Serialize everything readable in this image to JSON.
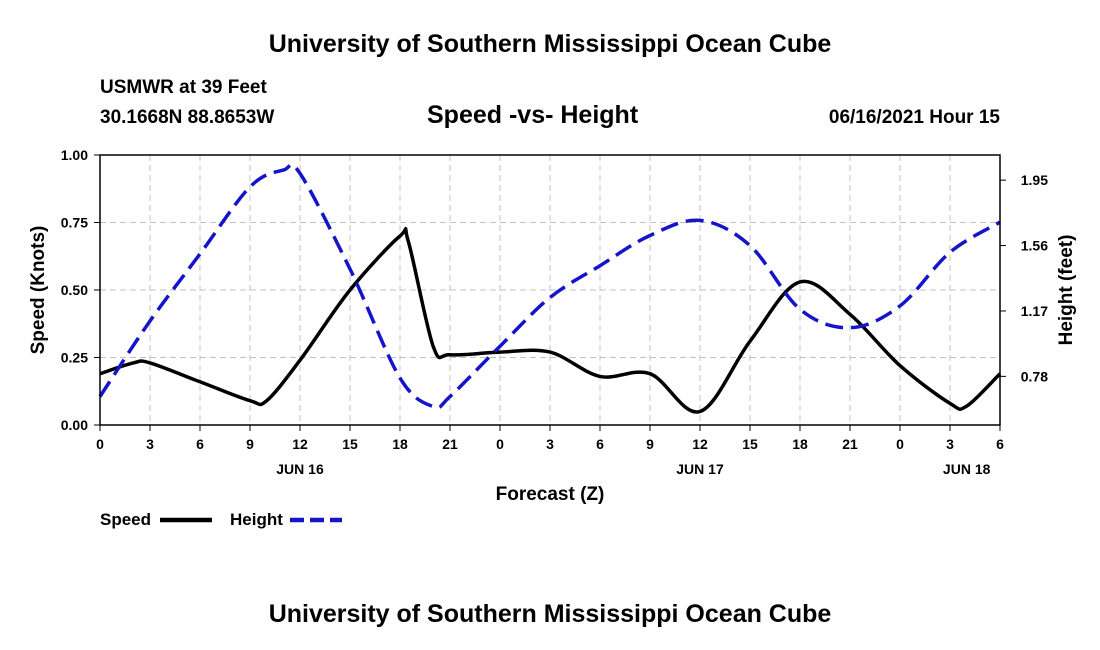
{
  "header": {
    "title": "University of Southern Mississippi Ocean Cube",
    "station": "USMWR at 39 Feet",
    "coords": "30.1668N  88.8653W",
    "chart_title": "Speed -vs- Height",
    "datetime": "06/16/2021 Hour 15"
  },
  "footer": {
    "title": "University of Southern Mississippi Ocean Cube"
  },
  "colors": {
    "speed": "#000000",
    "height": "#1414c8",
    "grid": "#c0c0c0"
  },
  "chart_data": {
    "type": "line",
    "title": "Speed -vs- Height",
    "xlabel": "Forecast (Z)",
    "ylabel": "Speed (Knots)",
    "y2label": "Height (feet)",
    "xlim": [
      0,
      54
    ],
    "ylim": [
      0,
      1
    ],
    "y2lim": [
      0.49,
      2.1
    ],
    "grid": true,
    "x_ticks": [
      0,
      3,
      6,
      9,
      12,
      15,
      18,
      21,
      24,
      27,
      30,
      33,
      36,
      39,
      42,
      45,
      48,
      51,
      54
    ],
    "x_tick_labels": [
      "0",
      "3",
      "6",
      "9",
      "12",
      "15",
      "18",
      "21",
      "0",
      "3",
      "6",
      "9",
      "12",
      "15",
      "18",
      "21",
      "0",
      "3",
      "6"
    ],
    "y_ticks": [
      0,
      0.25,
      0.5,
      0.75,
      1.0
    ],
    "y_tick_labels": [
      "0.00",
      "0.25",
      "0.50",
      "0.75",
      "1.00"
    ],
    "y2_ticks": [
      0.78,
      1.17,
      1.56,
      1.95
    ],
    "y2_tick_labels": [
      "0.78",
      "1.17",
      "1.56",
      "1.95"
    ],
    "day_labels": [
      {
        "x": 12,
        "label": "JUN 16"
      },
      {
        "x": 36,
        "label": "JUN 17"
      },
      {
        "x": 52,
        "label": "JUN 18"
      }
    ],
    "legend": [
      {
        "name": "Speed",
        "style": "solid"
      },
      {
        "name": "Height",
        "style": "dashed"
      }
    ],
    "series": [
      {
        "name": "Speed",
        "axis": "left",
        "style": "solid",
        "x": [
          0,
          2,
          3,
          6,
          9,
          10,
          12,
          15,
          18,
          18.5,
          20,
          21,
          24,
          27,
          30,
          33,
          36,
          39,
          42,
          45,
          48,
          51,
          52,
          54
        ],
        "y": [
          0.19,
          0.23,
          0.23,
          0.16,
          0.09,
          0.09,
          0.24,
          0.5,
          0.7,
          0.68,
          0.29,
          0.26,
          0.27,
          0.27,
          0.18,
          0.19,
          0.05,
          0.31,
          0.53,
          0.41,
          0.22,
          0.08,
          0.07,
          0.19
        ]
      },
      {
        "name": "Height",
        "axis": "right",
        "style": "dashed",
        "x": [
          0,
          3,
          6,
          9,
          11,
          12,
          15,
          18,
          20,
          21,
          24,
          27,
          30,
          33,
          36,
          39,
          42,
          45,
          48,
          51,
          54
        ],
        "y": [
          0.66,
          1.11,
          1.51,
          1.91,
          2.01,
          1.99,
          1.42,
          0.77,
          0.6,
          0.66,
          0.96,
          1.25,
          1.44,
          1.62,
          1.71,
          1.56,
          1.18,
          1.07,
          1.2,
          1.52,
          1.7
        ]
      }
    ]
  }
}
